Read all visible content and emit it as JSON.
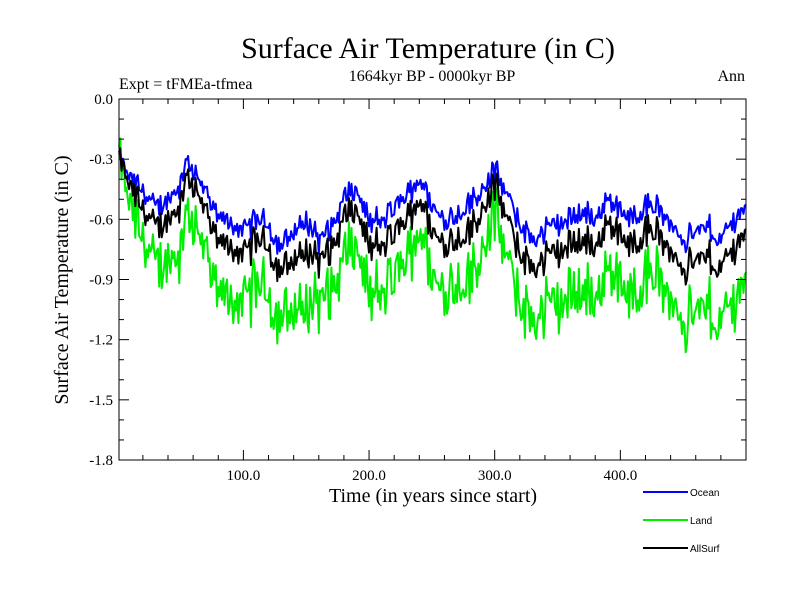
{
  "chart_data": {
    "type": "line",
    "title": "Surface Air Temperature (in C)",
    "subtitle": "1664kyr BP - 0000kyr BP",
    "left_label": "Expt = tFMEa-tfmea",
    "right_label": "Ann",
    "xlabel": "Time (in years since start)",
    "ylabel": "Surface Air Temperature (in C)",
    "xlim": [
      1,
      500
    ],
    "ylim": [
      -1.8,
      0.0
    ],
    "x_ticks": [
      100,
      200,
      300,
      400
    ],
    "x_tick_labels": [
      "100.0",
      "200.0",
      "300.0",
      "400.0"
    ],
    "y_ticks": [
      0.0,
      -0.3,
      -0.6,
      -0.9,
      -1.2,
      -1.5,
      -1.8
    ],
    "y_tick_labels": [
      "0.0",
      "-0.3",
      "-0.6",
      "-0.9",
      "-1.2",
      "-1.5",
      "-1.8"
    ],
    "grid": false,
    "legend_position": "bottom-right, below plot",
    "series": [
      {
        "name": "Ocean",
        "color": "#0000ff",
        "keypoints": [
          [
            1,
            -0.3
          ],
          [
            10,
            -0.4
          ],
          [
            20,
            -0.46
          ],
          [
            30,
            -0.55
          ],
          [
            40,
            -0.5
          ],
          [
            50,
            -0.42
          ],
          [
            55,
            -0.28
          ],
          [
            60,
            -0.35
          ],
          [
            70,
            -0.48
          ],
          [
            80,
            -0.58
          ],
          [
            90,
            -0.62
          ],
          [
            100,
            -0.66
          ],
          [
            110,
            -0.6
          ],
          [
            120,
            -0.63
          ],
          [
            130,
            -0.74
          ],
          [
            140,
            -0.66
          ],
          [
            150,
            -0.6
          ],
          [
            160,
            -0.7
          ],
          [
            170,
            -0.65
          ],
          [
            180,
            -0.5
          ],
          [
            190,
            -0.46
          ],
          [
            200,
            -0.6
          ],
          [
            210,
            -0.62
          ],
          [
            220,
            -0.55
          ],
          [
            230,
            -0.48
          ],
          [
            240,
            -0.4
          ],
          [
            250,
            -0.52
          ],
          [
            260,
            -0.6
          ],
          [
            270,
            -0.58
          ],
          [
            280,
            -0.52
          ],
          [
            290,
            -0.45
          ],
          [
            300,
            -0.35
          ],
          [
            310,
            -0.48
          ],
          [
            320,
            -0.62
          ],
          [
            330,
            -0.7
          ],
          [
            340,
            -0.66
          ],
          [
            350,
            -0.62
          ],
          [
            360,
            -0.6
          ],
          [
            370,
            -0.56
          ],
          [
            380,
            -0.6
          ],
          [
            390,
            -0.5
          ],
          [
            400,
            -0.55
          ],
          [
            410,
            -0.6
          ],
          [
            420,
            -0.52
          ],
          [
            430,
            -0.55
          ],
          [
            440,
            -0.62
          ],
          [
            450,
            -0.7
          ],
          [
            460,
            -0.66
          ],
          [
            470,
            -0.64
          ],
          [
            480,
            -0.7
          ],
          [
            490,
            -0.6
          ],
          [
            500,
            -0.52
          ]
        ]
      },
      {
        "name": "Land",
        "color": "#00ee00",
        "keypoints": [
          [
            1,
            -0.3
          ],
          [
            10,
            -0.55
          ],
          [
            20,
            -0.7
          ],
          [
            30,
            -0.85
          ],
          [
            40,
            -0.8
          ],
          [
            50,
            -0.75
          ],
          [
            55,
            -0.5
          ],
          [
            60,
            -0.6
          ],
          [
            70,
            -0.8
          ],
          [
            80,
            -0.95
          ],
          [
            90,
            -1.0
          ],
          [
            100,
            -1.02
          ],
          [
            110,
            -0.92
          ],
          [
            120,
            -0.98
          ],
          [
            130,
            -1.1
          ],
          [
            140,
            -1.05
          ],
          [
            150,
            -1.02
          ],
          [
            160,
            -1.0
          ],
          [
            170,
            -0.98
          ],
          [
            180,
            -0.8
          ],
          [
            190,
            -0.75
          ],
          [
            200,
            -0.95
          ],
          [
            210,
            -1.0
          ],
          [
            220,
            -0.9
          ],
          [
            230,
            -0.8
          ],
          [
            240,
            -0.65
          ],
          [
            250,
            -0.85
          ],
          [
            260,
            -0.95
          ],
          [
            270,
            -0.92
          ],
          [
            280,
            -0.9
          ],
          [
            290,
            -0.75
          ],
          [
            300,
            -0.55
          ],
          [
            310,
            -0.8
          ],
          [
            320,
            -1.0
          ],
          [
            330,
            -1.1
          ],
          [
            340,
            -1.05
          ],
          [
            350,
            -1.02
          ],
          [
            360,
            -0.98
          ],
          [
            370,
            -0.95
          ],
          [
            380,
            -1.0
          ],
          [
            390,
            -0.85
          ],
          [
            400,
            -0.9
          ],
          [
            410,
            -1.0
          ],
          [
            420,
            -0.85
          ],
          [
            430,
            -0.9
          ],
          [
            440,
            -1.0
          ],
          [
            450,
            -1.1
          ],
          [
            460,
            -1.05
          ],
          [
            470,
            -1.05
          ],
          [
            480,
            -1.1
          ],
          [
            490,
            -1.0
          ],
          [
            500,
            -0.85
          ]
        ]
      },
      {
        "name": "AllSurf",
        "color": "#000000",
        "keypoints": [
          [
            1,
            -0.3
          ],
          [
            10,
            -0.45
          ],
          [
            20,
            -0.55
          ],
          [
            30,
            -0.65
          ],
          [
            40,
            -0.6
          ],
          [
            50,
            -0.52
          ],
          [
            55,
            -0.35
          ],
          [
            60,
            -0.42
          ],
          [
            70,
            -0.58
          ],
          [
            80,
            -0.7
          ],
          [
            90,
            -0.74
          ],
          [
            100,
            -0.78
          ],
          [
            110,
            -0.7
          ],
          [
            120,
            -0.74
          ],
          [
            130,
            -0.86
          ],
          [
            140,
            -0.8
          ],
          [
            150,
            -0.75
          ],
          [
            160,
            -0.8
          ],
          [
            170,
            -0.76
          ],
          [
            180,
            -0.6
          ],
          [
            190,
            -0.56
          ],
          [
            200,
            -0.72
          ],
          [
            210,
            -0.75
          ],
          [
            220,
            -0.68
          ],
          [
            230,
            -0.6
          ],
          [
            240,
            -0.5
          ],
          [
            250,
            -0.64
          ],
          [
            260,
            -0.72
          ],
          [
            270,
            -0.7
          ],
          [
            280,
            -0.66
          ],
          [
            290,
            -0.55
          ],
          [
            300,
            -0.42
          ],
          [
            310,
            -0.6
          ],
          [
            320,
            -0.76
          ],
          [
            330,
            -0.84
          ],
          [
            340,
            -0.8
          ],
          [
            350,
            -0.76
          ],
          [
            360,
            -0.73
          ],
          [
            370,
            -0.7
          ],
          [
            380,
            -0.74
          ],
          [
            390,
            -0.62
          ],
          [
            400,
            -0.67
          ],
          [
            410,
            -0.74
          ],
          [
            420,
            -0.64
          ],
          [
            430,
            -0.68
          ],
          [
            440,
            -0.76
          ],
          [
            450,
            -0.84
          ],
          [
            460,
            -0.8
          ],
          [
            470,
            -0.79
          ],
          [
            480,
            -0.84
          ],
          [
            490,
            -0.74
          ],
          [
            500,
            -0.64
          ]
        ]
      }
    ]
  }
}
